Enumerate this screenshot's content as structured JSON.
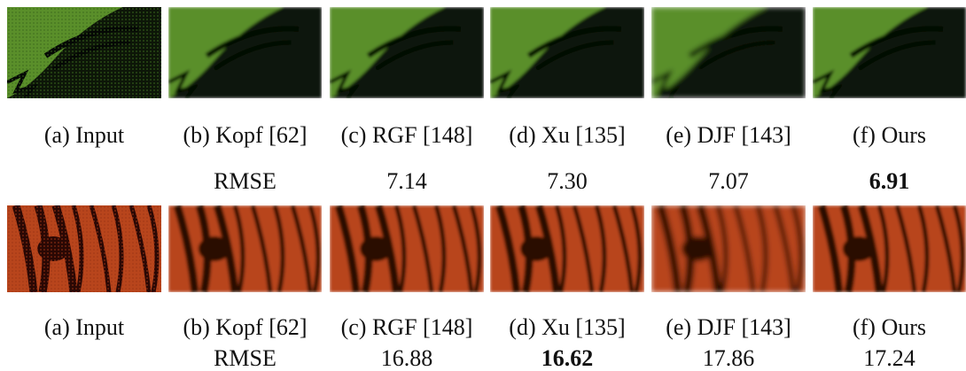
{
  "rows": [
    {
      "captions": [
        "(a) Input",
        "(b) Kopf [62]",
        "(c) RGF [148]",
        "(d) Xu [135]",
        "(e) DJF [143]",
        "(f) Ours"
      ],
      "metric_label": "RMSE",
      "values": [
        "7.14",
        "7.30",
        "7.07",
        "6.91"
      ],
      "bold_index": 3
    },
    {
      "captions": [
        "(a) Input",
        "(b) Kopf [62]",
        "(c) RGF [148]",
        "(d) Xu [135]",
        "(e) DJF [143]",
        "(f) Ours"
      ],
      "metric_label": "RMSE",
      "values": [
        "16.88",
        "16.62",
        "17.86",
        "17.24"
      ],
      "bold_index": 1
    }
  ]
}
